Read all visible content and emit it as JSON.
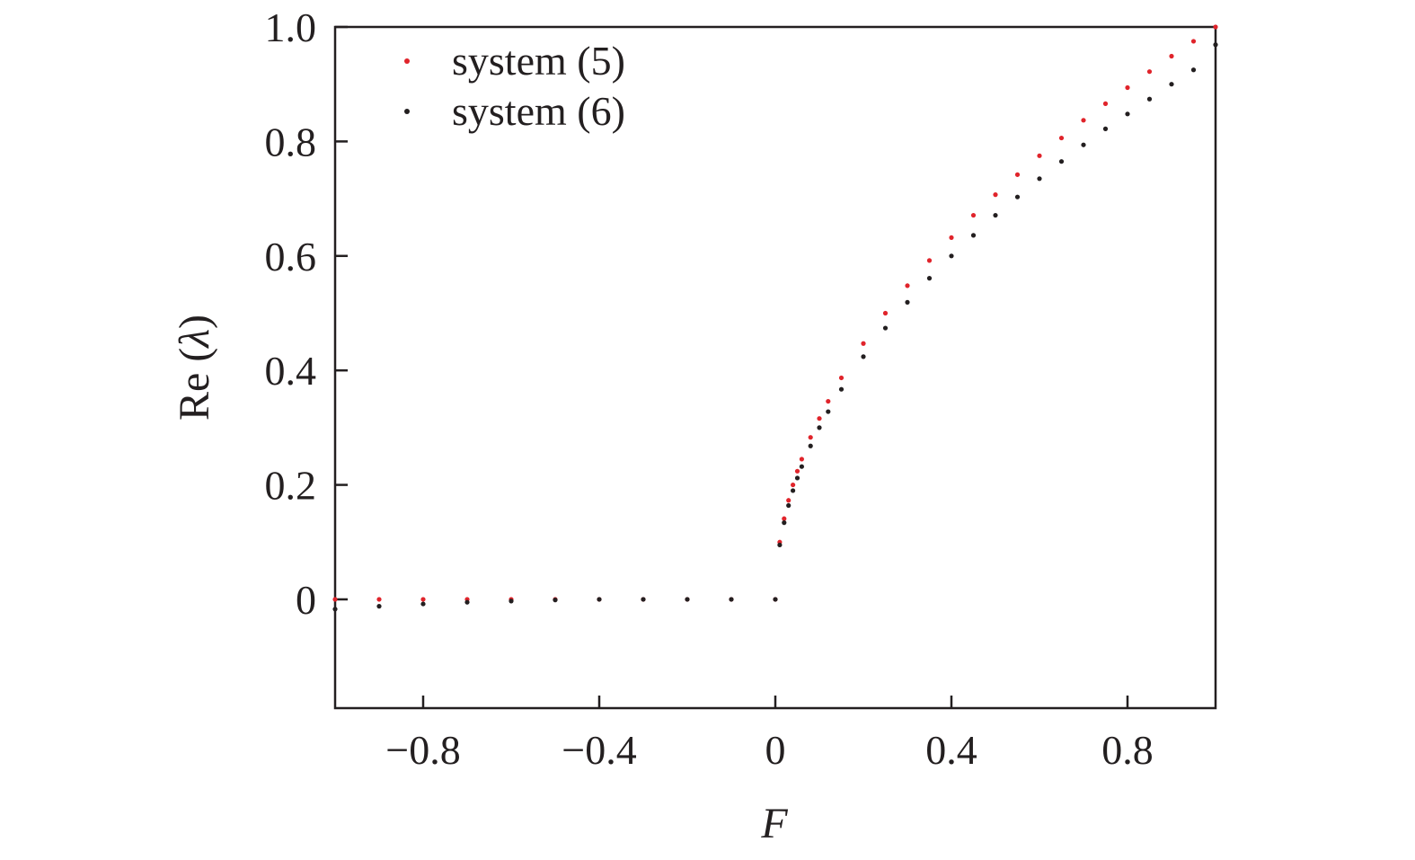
{
  "chart_data": {
    "type": "scatter",
    "title": "",
    "xlabel": "F",
    "ylabel_prefix": "Re (",
    "ylabel_symbol": "λ",
    "ylabel_suffix": ")",
    "xlim": [
      -1.0,
      1.0
    ],
    "ylim": [
      -0.19,
      1.0
    ],
    "x_ticks": [
      -0.8,
      -0.4,
      0,
      0.4,
      0.8
    ],
    "x_tick_labels": [
      "−0.8",
      "−0.4",
      "0",
      "0.4",
      "0.8"
    ],
    "y_ticks": [
      0,
      0.2,
      0.4,
      0.6,
      0.8,
      1.0
    ],
    "y_tick_labels": [
      "0",
      "0.2",
      "0.4",
      "0.6",
      "0.8",
      "1.0"
    ],
    "grid": false,
    "legend_position": "top-left",
    "colors": {
      "axis": "#231f20",
      "system5": "#e0242b",
      "system6": "#231f20"
    },
    "series": [
      {
        "name": "system (5)",
        "color": "#e0242b",
        "x": [
          -1.0,
          -0.9,
          -0.8,
          -0.7,
          -0.6,
          -0.5,
          -0.4,
          -0.3,
          -0.2,
          -0.1,
          0.0,
          0.01,
          0.02,
          0.03,
          0.04,
          0.05,
          0.06,
          0.08,
          0.1,
          0.12,
          0.15,
          0.2,
          0.25,
          0.3,
          0.35,
          0.4,
          0.45,
          0.5,
          0.55,
          0.6,
          0.65,
          0.7,
          0.75,
          0.8,
          0.85,
          0.9,
          0.95,
          1.0
        ],
        "y": [
          0.0,
          0.0,
          0.0,
          0.0,
          0.0,
          0.0,
          0.0,
          0.0,
          0.0,
          0.0,
          0.0,
          0.1,
          0.141,
          0.173,
          0.2,
          0.224,
          0.245,
          0.283,
          0.316,
          0.346,
          0.387,
          0.447,
          0.5,
          0.548,
          0.592,
          0.632,
          0.671,
          0.707,
          0.742,
          0.775,
          0.806,
          0.837,
          0.866,
          0.894,
          0.922,
          0.949,
          0.975,
          1.0
        ]
      },
      {
        "name": "system (6)",
        "color": "#231f20",
        "x": [
          -1.0,
          -0.9,
          -0.8,
          -0.7,
          -0.6,
          -0.5,
          -0.4,
          -0.3,
          -0.2,
          -0.1,
          0.0,
          0.01,
          0.02,
          0.03,
          0.04,
          0.05,
          0.06,
          0.08,
          0.1,
          0.12,
          0.15,
          0.2,
          0.25,
          0.3,
          0.35,
          0.4,
          0.45,
          0.5,
          0.55,
          0.6,
          0.65,
          0.7,
          0.75,
          0.8,
          0.85,
          0.9,
          0.95,
          1.0
        ],
        "y": [
          -0.017,
          -0.012,
          -0.008,
          -0.005,
          -0.003,
          -0.001,
          0.0,
          0.0,
          0.0,
          0.0,
          0.0,
          0.095,
          0.134,
          0.164,
          0.19,
          0.212,
          0.232,
          0.268,
          0.3,
          0.328,
          0.367,
          0.424,
          0.474,
          0.519,
          0.561,
          0.6,
          0.636,
          0.671,
          0.703,
          0.735,
          0.765,
          0.794,
          0.822,
          0.848,
          0.874,
          0.9,
          0.925,
          0.969
        ]
      }
    ]
  }
}
